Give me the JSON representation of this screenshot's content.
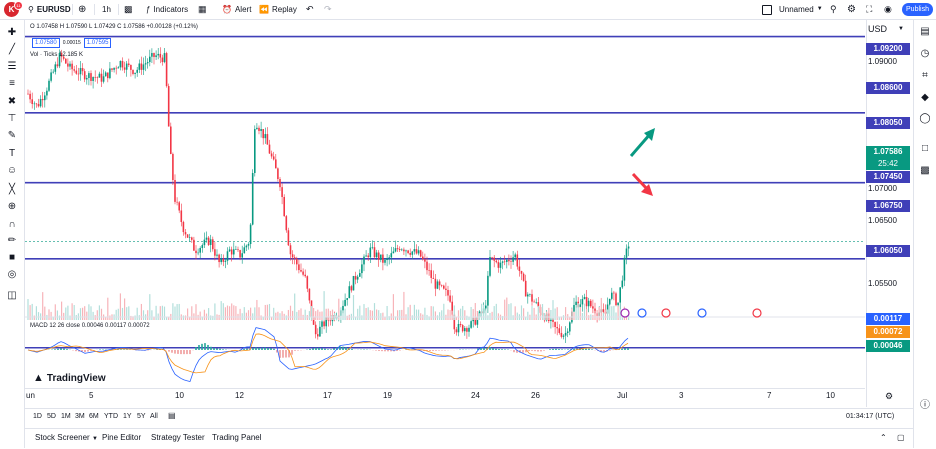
{
  "topbar": {
    "logo_letter": "K",
    "logo_badge": "11",
    "symbol": "EURUSD",
    "add_icon": "plus-circle-icon",
    "interval": "1h",
    "indicators_label": "Indicators",
    "alert_label": "Alert",
    "replay_label": "Replay",
    "layout_name": "Unnamed",
    "publish_label": "Publish"
  },
  "legend": {
    "ohlc": "O 1.07458  H 1.07590  L 1.07429  C 1.07586  +0.00128 (+0.12%)",
    "bid": "1.07580",
    "spread": "0.00015",
    "ask": "1.07595",
    "volume": "Vol · Ticks  12.185 K",
    "macd": "MACD 12 26 close  0.00046  0.00117  0.00072"
  },
  "watermark": "TradingView",
  "currency": "USD",
  "price_labels": [
    "1.09000",
    "1.07000",
    "1.06500",
    "1.05500"
  ],
  "price_tags": [
    {
      "value": "1.09200",
      "color": "#3f3fb8"
    },
    {
      "value": "1.08600",
      "color": "#3f3fb8"
    },
    {
      "value": "1.08050",
      "color": "#3f3fb8"
    },
    {
      "value": "1.07586",
      "color": "#089981"
    },
    {
      "value": "25:42",
      "color": "#089981"
    },
    {
      "value": "1.07450",
      "color": "#3f3fb8"
    },
    {
      "value": "1.06750",
      "color": "#3f3fb8"
    },
    {
      "value": "1.06050",
      "color": "#3f3fb8"
    }
  ],
  "macd_tags": [
    {
      "value": "0.00117",
      "color": "#2962ff"
    },
    {
      "value": "0.00072",
      "color": "#f7931a"
    },
    {
      "value": "0.00046",
      "color": "#2962ff"
    }
  ],
  "time_labels": [
    "un",
    "5",
    "10",
    "12",
    "17",
    "19",
    "24",
    "26",
    "Jul",
    "3",
    "7",
    "10"
  ],
  "range_buttons": [
    "1D",
    "5D",
    "1M",
    "3M",
    "6M",
    "YTD",
    "1Y",
    "5Y",
    "All"
  ],
  "clock": "01:34:17 (UTC)",
  "bottom_tabs": [
    "Stock Screener",
    "Pine Editor",
    "Strategy Tester",
    "Trading Panel"
  ]
}
